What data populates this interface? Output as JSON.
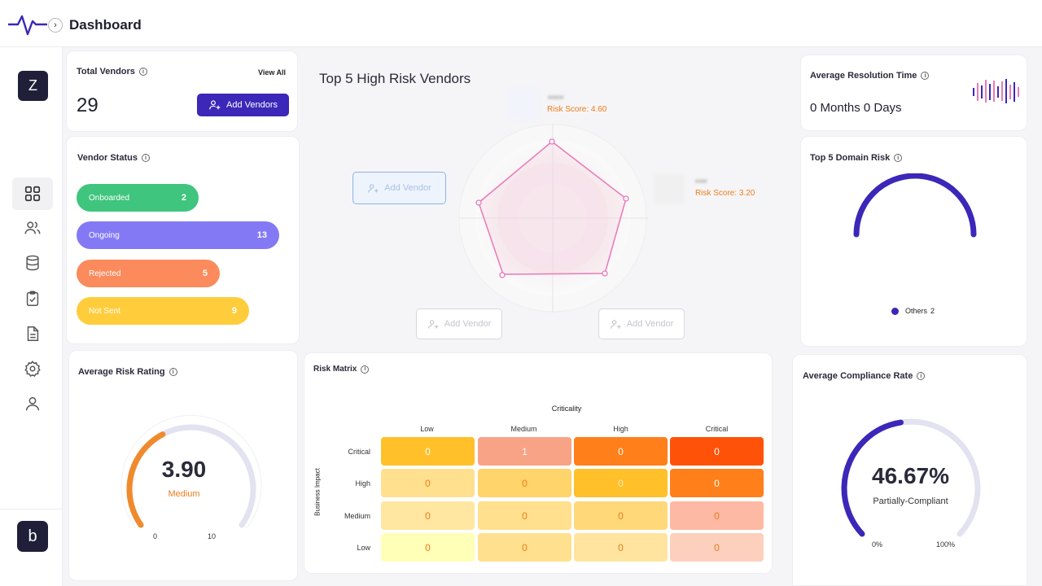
{
  "header": {
    "title": "Dashboard"
  },
  "sidebar": {
    "org_initial": "Z",
    "brand_initial": "b",
    "items": [
      {
        "name": "dashboard",
        "icon": "grid-icon",
        "active": true
      },
      {
        "name": "vendors",
        "icon": "users-icon"
      },
      {
        "name": "data",
        "icon": "database-icon"
      },
      {
        "name": "assessments",
        "icon": "clipboard-check-icon"
      },
      {
        "name": "documents",
        "icon": "document-icon"
      },
      {
        "name": "settings",
        "icon": "gear-icon"
      },
      {
        "name": "profile",
        "icon": "user-icon"
      }
    ]
  },
  "total_vendors": {
    "title": "Total Vendors",
    "view_all": "View All",
    "count": "29",
    "add_button": "Add Vendors"
  },
  "vendor_status": {
    "title": "Vendor Status",
    "items": [
      {
        "label": "Onboarded",
        "value": "2",
        "color": "#3fc57d"
      },
      {
        "label": "Ongoing",
        "value": "13",
        "color": "#8479f5"
      },
      {
        "label": "Rejected",
        "value": "5",
        "color": "#fb8a5c"
      },
      {
        "label": "Not Sent",
        "value": "9",
        "color": "#ffcd3c"
      }
    ]
  },
  "top_vendors": {
    "title": "Top 5 High Risk Vendors",
    "add_vendor_label": "Add Vendor",
    "vendors": [
      {
        "risk_score_label": "Risk Score: 4.60"
      },
      {
        "risk_score_label": "Risk Score: 3.20"
      }
    ]
  },
  "avg_resolution": {
    "title": "Average Resolution Time",
    "value": "0 Months 0 Days"
  },
  "domain_risk": {
    "title": "Top 5 Domain Risk",
    "legend_label": "Others",
    "legend_value": "2",
    "color": "#3b27b8"
  },
  "avg_risk": {
    "title": "Average Risk Rating",
    "value": "3.90",
    "level": "Medium",
    "min": "0",
    "max": "10",
    "fraction": 0.39,
    "color": "#f07d1a"
  },
  "risk_matrix": {
    "title": "Risk Matrix",
    "x_title": "Criticality",
    "y_title": "Business Impact",
    "columns": [
      "Low",
      "Medium",
      "High",
      "Critical"
    ],
    "rows": [
      {
        "label": "Critical",
        "cells": [
          "0",
          "1",
          "0",
          "0"
        ]
      },
      {
        "label": "High",
        "cells": [
          "0",
          "0",
          "0",
          "0"
        ]
      },
      {
        "label": "Medium",
        "cells": [
          "0",
          "0",
          "0",
          "0"
        ]
      },
      {
        "label": "Low",
        "cells": [
          "0",
          "0",
          "0",
          "0"
        ]
      }
    ]
  },
  "compliance": {
    "title": "Average Compliance Rate",
    "value": "46.67%",
    "status": "Partially-Compliant",
    "min": "0%",
    "max": "100%",
    "fraction": 0.4667,
    "color": "#3b27b8"
  }
}
